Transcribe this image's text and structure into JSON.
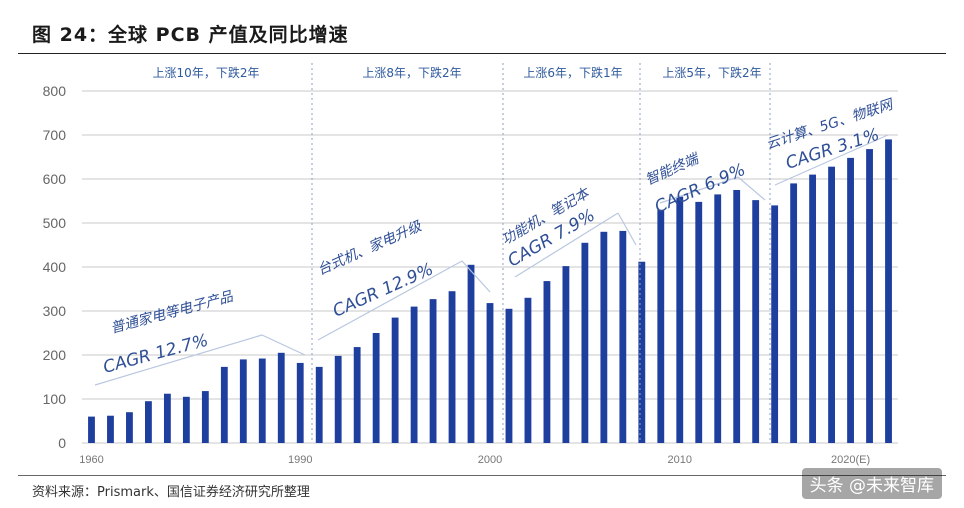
{
  "figure": {
    "title": "图 24：全球 PCB 产值及同比增速",
    "source": "资料来源：Prismark、国信证券经济研究所整理",
    "watermark": "头条 @未来智库"
  },
  "colors": {
    "bar": "#1f3f9e",
    "grid": "#c8c8c8",
    "annotation": "#2f4f96"
  },
  "chart_data": {
    "type": "bar",
    "title": "图 24：全球 PCB 产值及同比增速",
    "xlabel": "",
    "ylabel": "",
    "ylim": [
      0,
      800
    ],
    "yticks": [
      0,
      100,
      200,
      300,
      400,
      500,
      600,
      700,
      800
    ],
    "grid": "horizontal",
    "x_tick_labels": [
      "1960",
      "1990",
      "2000",
      "2010",
      "2020(E)"
    ],
    "categories": [
      "1",
      "2",
      "3",
      "4",
      "5",
      "6",
      "7",
      "8",
      "9",
      "10",
      "11",
      "12",
      "13",
      "14",
      "15",
      "16",
      "17",
      "18",
      "19",
      "20",
      "21",
      "22",
      "23",
      "24",
      "25",
      "26",
      "27",
      "28",
      "29",
      "30",
      "31",
      "32",
      "33",
      "34",
      "35",
      "36",
      "37",
      "38",
      "39",
      "40",
      "41",
      "42",
      "43"
    ],
    "values": [
      60,
      62,
      70,
      95,
      112,
      105,
      118,
      173,
      190,
      192,
      205,
      182,
      173,
      198,
      218,
      250,
      285,
      310,
      327,
      345,
      405,
      318,
      305,
      330,
      368,
      402,
      455,
      480,
      482,
      412,
      530,
      560,
      548,
      565,
      575,
      552,
      540,
      590,
      610,
      628,
      648,
      668,
      690
    ],
    "phases": [
      "上涨10年，下跌2年",
      "上涨8年，下跌2年",
      "上涨6年，下跌1年",
      "上涨5年，下跌2年"
    ],
    "annotations": [
      {
        "label": "普通家电等电子产品",
        "cagr": "CAGR 12.7%"
      },
      {
        "label": "台式机、家电升级",
        "cagr": "CAGR 12.9%"
      },
      {
        "label": "功能机、笔记本",
        "cagr": "CAGR 7.9%"
      },
      {
        "label": "智能终端",
        "cagr": "CAGR 6.9%"
      },
      {
        "label": "云计算、5G、物联网",
        "cagr": "CAGR 3.1%"
      }
    ]
  }
}
